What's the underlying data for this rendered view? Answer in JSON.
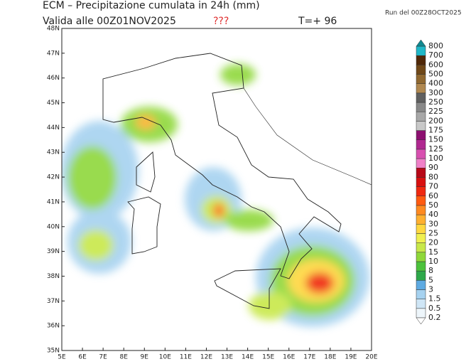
{
  "header": {
    "title": "ECM – Precipitazione cumulata in 24h (mm)",
    "valid": "Valida alle 00Z01NOV2025",
    "flag": "???",
    "lead": "T=+ 96",
    "run": "Run del 00Z28OCT2025"
  },
  "map": {
    "lat_labels": [
      "35N",
      "36N",
      "37N",
      "38N",
      "39N",
      "40N",
      "41N",
      "42N",
      "43N",
      "44N",
      "45N",
      "46N",
      "47N",
      "48N"
    ],
    "lon_labels": [
      "5E",
      "6E",
      "7E",
      "8E",
      "9E",
      "10E",
      "11E",
      "12E",
      "13E",
      "14E",
      "15E",
      "16E",
      "17E",
      "18E",
      "19E",
      "20E"
    ]
  },
  "colorbar": {
    "labels": [
      0.2,
      0.5,
      1.5,
      3,
      5,
      8,
      10,
      15,
      20,
      25,
      30,
      40,
      50,
      60,
      70,
      80,
      90,
      100,
      125,
      150,
      175,
      200,
      225,
      250,
      300,
      400,
      500,
      600,
      700,
      800
    ],
    "colors": [
      "#eef6fb",
      "#cfe6f6",
      "#a6d2f0",
      "#5eaae2",
      "#2ea84a",
      "#4cc23c",
      "#8fd83a",
      "#c8e84a",
      "#f0f050",
      "#ffd840",
      "#ffb030",
      "#ff8a20",
      "#ff5a10",
      "#f02810",
      "#d81010",
      "#b80818",
      "#f080c8",
      "#d850b0",
      "#b02890",
      "#8c1070",
      "#c8c8c8",
      "#a8a8a8",
      "#888888",
      "#606060",
      "#b08850",
      "#906830",
      "#704818",
      "#502808",
      "#20b8c8"
    ],
    "under_color": "#ffffff",
    "over_color": "#108890"
  }
}
